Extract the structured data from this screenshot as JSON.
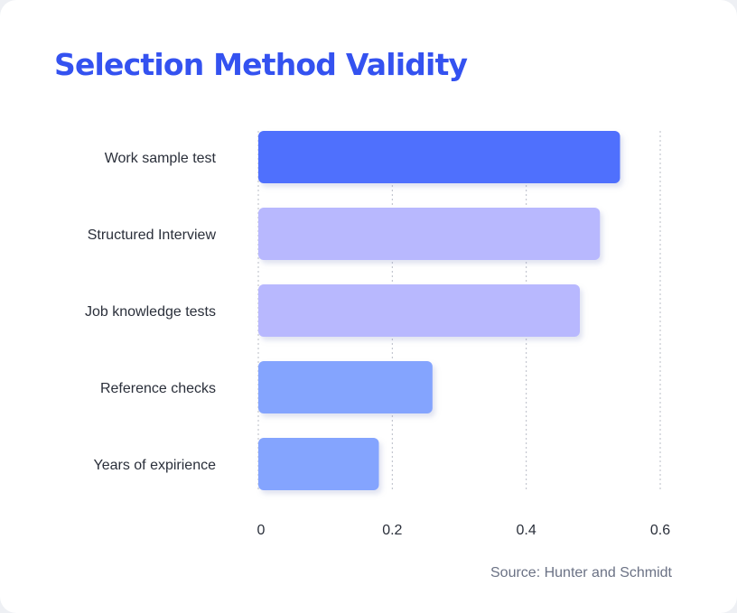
{
  "chart_data": {
    "type": "bar",
    "orientation": "horizontal",
    "title": "Selection Method Validity",
    "categories": [
      "Work sample test",
      "Structured Interview",
      "Job knowledge tests",
      "Reference checks",
      "Years of expirience"
    ],
    "values": [
      0.54,
      0.51,
      0.48,
      0.26,
      0.18
    ],
    "bar_colors": [
      "#4f6ffd",
      "#b8b8fe",
      "#b8b8fe",
      "#84a4fe",
      "#84a4fe"
    ],
    "xlim": [
      0,
      0.6
    ],
    "xticks": [
      0,
      0.2,
      0.4,
      0.6
    ],
    "xtick_labels": [
      "0",
      "0.2",
      "0.4",
      "0.6"
    ],
    "grid": "vertical dashed",
    "xlabel": "",
    "ylabel": "",
    "source": "Source: Hunter and Schmidt"
  }
}
